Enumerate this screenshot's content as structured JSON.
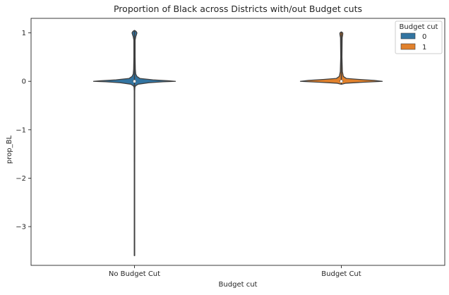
{
  "chart_data": {
    "type": "violin",
    "title": "Proportion of Black across Districts with/out Budget cuts",
    "xlabel": "Budget cut",
    "ylabel": "prop_BL",
    "categories": [
      "No Budget Cut",
      "Budget Cut"
    ],
    "ylim": [
      -3.8,
      1.3
    ],
    "yticks": [
      1,
      0,
      -1,
      -2,
      -3
    ],
    "ytick_labels": [
      "1",
      "0",
      "−1",
      "−2",
      "−3"
    ],
    "grid": false,
    "legend": {
      "title": "Budget cut",
      "position": "top-right",
      "entries": [
        {
          "label": "0",
          "color": "#3274a1"
        },
        {
          "label": "1",
          "color": "#e1812c"
        }
      ]
    },
    "series": [
      {
        "name": "0",
        "category": "No Budget Cut",
        "color": "#3274a1",
        "min": -3.6,
        "max": 1.05,
        "median": 0.0,
        "q1": -0.01,
        "q3": 0.02,
        "profile": [
          [
            -3.6,
            0.005
          ],
          [
            -2.0,
            0.005
          ],
          [
            -0.2,
            0.006
          ],
          [
            -0.12,
            0.01
          ],
          [
            -0.09,
            0.03
          ],
          [
            -0.06,
            0.09
          ],
          [
            -0.03,
            0.35
          ],
          [
            -0.01,
            0.7
          ],
          [
            0.0,
            1.0
          ],
          [
            0.01,
            0.85
          ],
          [
            0.03,
            0.45
          ],
          [
            0.06,
            0.13
          ],
          [
            0.1,
            0.06
          ],
          [
            0.15,
            0.03
          ],
          [
            0.25,
            0.02
          ],
          [
            0.5,
            0.015
          ],
          [
            0.85,
            0.015
          ],
          [
            0.92,
            0.03
          ],
          [
            0.97,
            0.05
          ],
          [
            1.0,
            0.06
          ],
          [
            1.03,
            0.04
          ],
          [
            1.05,
            0.005
          ]
        ]
      },
      {
        "name": "1",
        "category": "Budget Cut",
        "color": "#e1812c",
        "min": -0.06,
        "max": 1.02,
        "median": 0.0,
        "q1": -0.01,
        "q3": 0.02,
        "profile": [
          [
            -0.06,
            0.005
          ],
          [
            -0.04,
            0.1
          ],
          [
            -0.02,
            0.5
          ],
          [
            0.0,
            1.0
          ],
          [
            0.02,
            0.8
          ],
          [
            0.04,
            0.42
          ],
          [
            0.06,
            0.12
          ],
          [
            0.1,
            0.05
          ],
          [
            0.2,
            0.025
          ],
          [
            0.5,
            0.015
          ],
          [
            0.9,
            0.02
          ],
          [
            0.97,
            0.035
          ],
          [
            1.0,
            0.035
          ],
          [
            1.02,
            0.005
          ]
        ]
      }
    ]
  }
}
